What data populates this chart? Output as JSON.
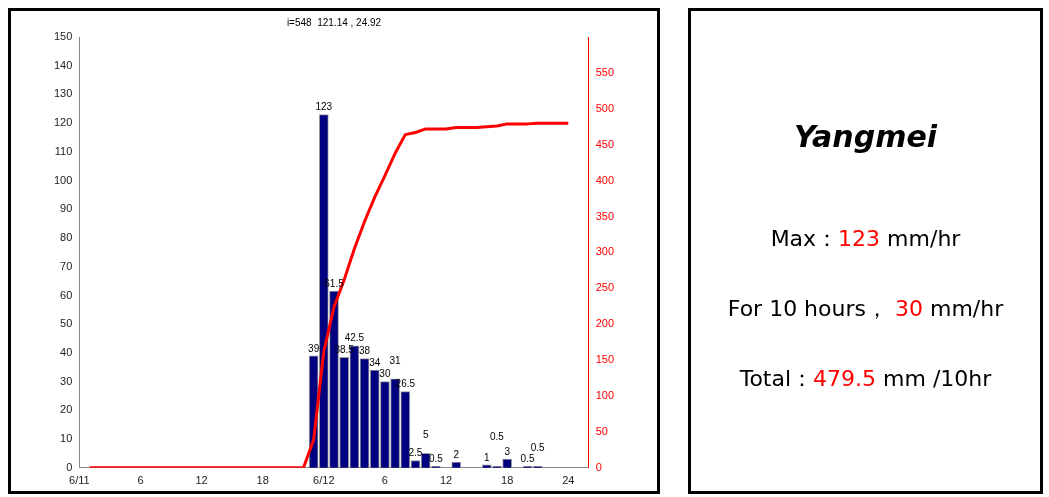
{
  "chart_data": [
    {
      "type": "bar",
      "title": "i=548  121.14 , 24.92",
      "x": [
        "--06-11T23:00",
        "--06-12T00:00",
        "--06-12T01:00",
        "--06-12T02:00",
        "--06-12T03:00",
        "--06-12T04:00",
        "--06-12T05:00",
        "--06-12T06:00",
        "--06-12T07:00",
        "--06-12T08:00",
        "--06-12T09:00",
        "--06-12T10:00",
        "--06-12T11:00",
        "--06-12T13:00",
        "--06-12T16:00",
        "--06-12T17:00",
        "--06-12T18:00",
        "--06-12T20:00",
        "--06-12T21:00"
      ],
      "series": [
        {
          "type": "bar",
          "color": "#000080",
          "values": [
            39,
            123,
            61.5,
            38.5,
            42.5,
            38,
            34,
            30,
            31,
            26.5,
            2.5,
            5,
            0.5,
            2,
            1,
            0.5,
            3,
            0.5,
            0.5
          ],
          "value_labels": [
            "39",
            "123",
            "61.5",
            "38.5",
            "42.5",
            "38",
            "34",
            "30",
            "31",
            "26.5",
            "2.5",
            "5",
            "0.5",
            "2",
            "1",
            "0.5",
            "3",
            "0.5",
            "0.5"
          ]
        },
        {
          "type": "line",
          "axis": "y2",
          "color": "#ff0000",
          "x": [
            "--06-11T01:00",
            "--06-11T22:00",
            "--06-11T23:00",
            "--06-12T00:00",
            "--06-12T01:00",
            "--06-12T02:00",
            "--06-12T03:00",
            "--06-12T04:00",
            "--06-12T05:00",
            "--06-12T06:00",
            "--06-12T07:00",
            "--06-12T08:00",
            "--06-12T09:00",
            "--06-12T10:00",
            "--06-12T11:00",
            "--06-12T12:00",
            "--06-12T13:00",
            "--06-12T14:00",
            "--06-12T15:00",
            "--06-12T16:00",
            "--06-12T17:00",
            "--06-12T18:00",
            "--06-12T19:00",
            "--06-12T20:00",
            "--06-12T21:00",
            "--06-12T22:00",
            "--06-12T23:00",
            "--06-13T00:00"
          ],
          "values": [
            0,
            0,
            39,
            162,
            224,
            262,
            305,
            343,
            377,
            407,
            438,
            464,
            467,
            472,
            472,
            472,
            474,
            474,
            474,
            475,
            476,
            479,
            479,
            479,
            480,
            480,
            480,
            480
          ]
        }
      ],
      "xlim": [
        "--06-11T00:00",
        "--06-13T02:00"
      ],
      "xticks": [
        {
          "value": "--06-11T00:00",
          "label": "6/11"
        },
        {
          "value": "--06-11T06:00",
          "label": "6"
        },
        {
          "value": "--06-11T12:00",
          "label": "12"
        },
        {
          "value": "--06-11T18:00",
          "label": "18"
        },
        {
          "value": "--06-12T00:00",
          "label": "6/12"
        },
        {
          "value": "--06-12T06:00",
          "label": "6"
        },
        {
          "value": "--06-12T12:00",
          "label": "12"
        },
        {
          "value": "--06-12T18:00",
          "label": "18"
        },
        {
          "value": "--06-13T00:00",
          "label": "24"
        }
      ],
      "ylim": [
        0,
        150
      ],
      "yticks": [
        0,
        10,
        20,
        30,
        40,
        50,
        60,
        70,
        80,
        90,
        100,
        110,
        120,
        130,
        140,
        150
      ],
      "y2lim": [
        0,
        600
      ],
      "y2ticks": [
        0,
        50,
        100,
        150,
        200,
        250,
        300,
        350,
        400,
        450,
        500,
        550
      ],
      "grid": false,
      "legend": false
    },
    {
      "type": "other",
      "title": "Yangmei",
      "annotations": [
        "Max：123 mm/hr",
        "For 10 hours， 30 mm/hr",
        "Total：479.5 mm /10hr"
      ]
    }
  ]
}
